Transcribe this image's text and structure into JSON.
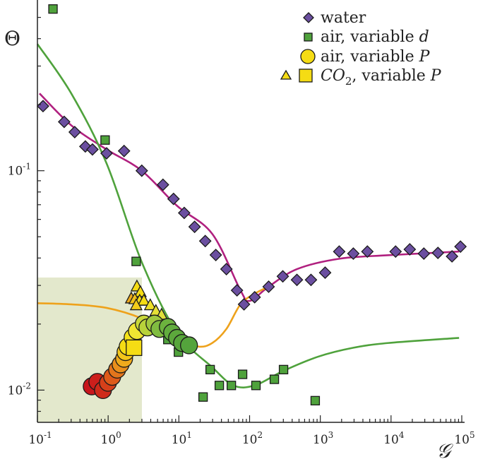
{
  "chart_data": {
    "type": "scatter",
    "title": "",
    "xlabel": "𝒢",
    "ylabel": "Θ",
    "xscale": "log",
    "yscale": "log",
    "xlim": [
      0.1,
      100000
    ],
    "ylim": [
      0.00713,
      0.6
    ],
    "grid": false,
    "legend_position": "top-right",
    "x_ticks": [
      {
        "base": "10",
        "exp": "-1",
        "value": 0.1
      },
      {
        "base": "10",
        "exp": "0",
        "value": 1
      },
      {
        "base": "10",
        "exp": "1",
        "value": 10
      },
      {
        "base": "10",
        "exp": "2",
        "value": 100
      },
      {
        "base": "10",
        "exp": "3",
        "value": 1000
      },
      {
        "base": "10",
        "exp": "4",
        "value": 10000
      },
      {
        "base": "10",
        "exp": "5",
        "value": 100000
      }
    ],
    "y_ticks": [
      {
        "base": "10",
        "exp": "-1",
        "value": 0.1
      },
      {
        "base": "10",
        "exp": "-2",
        "value": 0.01
      }
    ],
    "shaded_region": {
      "x": [
        0.1,
        3.0
      ],
      "y": [
        0.00713,
        0.0326
      ],
      "color": "#e3e8cc"
    },
    "legend": [
      {
        "marker": "diamond",
        "color": "#6b4fa0",
        "text": "water"
      },
      {
        "marker": "square",
        "color": "#4fa23c",
        "text": "air,  variable ",
        "italic": "d"
      },
      {
        "marker": "circle",
        "color": "#f5dc14",
        "text": "air,  variable ",
        "italic": "P"
      },
      {
        "marker": "triangle+square",
        "color": "#f5dc14",
        "text_italic_pre": "CO",
        "sub": "2",
        "text": ", variable ",
        "italic": "P"
      }
    ],
    "fits": [
      {
        "name": "water-fit",
        "color": "#b0207f",
        "x": [
          0.107,
          0.301,
          0.95,
          2.99,
          9.42,
          29.7,
          74.3,
          100,
          186,
          467,
          1850,
          9230,
          91600
        ],
        "y": [
          0.225,
          0.161,
          0.125,
          0.1,
          0.0692,
          0.0515,
          0.0285,
          0.0255,
          0.0296,
          0.0356,
          0.0397,
          0.0412,
          0.0428
        ]
      },
      {
        "name": "air-d-fit",
        "color": "#4fa23c",
        "x": [
          0.1,
          0.301,
          0.95,
          2.99,
          9.42,
          29.7,
          59.2,
          118,
          295,
          929,
          2930,
          9230,
          91600
        ],
        "y": [
          0.378,
          0.225,
          0.108,
          0.0383,
          0.0183,
          0.0127,
          0.0105,
          0.0105,
          0.0122,
          0.0142,
          0.0156,
          0.0164,
          0.0173
        ]
      },
      {
        "name": "air-P-fit",
        "color": "#eea21c",
        "x": [
          0.1,
          0.301,
          0.95,
          2.99,
          9.42,
          18.7,
          29.7,
          47,
          74.3,
          118,
          186
        ],
        "y": [
          0.0249,
          0.0246,
          0.0237,
          0.0212,
          0.0173,
          0.0158,
          0.0164,
          0.019,
          0.0246,
          0.0275,
          0.0296
        ]
      }
    ],
    "series": [
      {
        "name": "water",
        "marker": "diamond",
        "color": "#6b4fa0",
        "x": [
          0.12,
          0.239,
          0.337,
          0.476,
          0.6,
          0.95,
          1.68,
          2.99,
          5.96,
          8.4,
          11.9,
          16.7,
          23.6,
          33.3,
          47,
          66.4,
          83.4,
          118,
          186,
          295,
          467,
          738,
          1170,
          1850,
          2930,
          4630,
          11600,
          18400,
          29100,
          46000,
          72800,
          95900
        ],
        "y": [
          0.197,
          0.167,
          0.15,
          0.129,
          0.125,
          0.12,
          0.123,
          0.1,
          0.0863,
          0.0744,
          0.0642,
          0.0555,
          0.0478,
          0.0413,
          0.0356,
          0.0285,
          0.0246,
          0.0265,
          0.0296,
          0.033,
          0.0318,
          0.0318,
          0.0343,
          0.0428,
          0.0419,
          0.0428,
          0.0428,
          0.0438,
          0.0419,
          0.0422,
          0.0407,
          0.0451
        ]
      },
      {
        "name": "air, variable d",
        "marker": "square",
        "color": "#4fa23c",
        "x": [
          0.166,
          0.906,
          2.49,
          6.98,
          9.86,
          22,
          27.7,
          37.3,
          55.2,
          79.6,
          123,
          224,
          302,
          847
        ],
        "y": [
          0.546,
          0.138,
          0.0386,
          0.017,
          0.0149,
          0.0093,
          0.0124,
          0.0105,
          0.0105,
          0.0118,
          0.0105,
          0.0112,
          0.0124,
          0.00895
        ]
      },
      {
        "name": "air, variable P",
        "marker": "circle",
        "x": [
          0.586,
          0.704,
          0.845,
          0.993,
          1.14,
          1.34,
          1.5,
          1.68,
          1.76,
          1.89,
          2.22,
          2.55,
          3.2,
          3.59,
          4.52,
          5.31,
          6.98,
          8.02,
          9.42,
          11.1,
          13.9
        ],
        "y": [
          0.0104,
          0.0109,
          0.01,
          0.0108,
          0.0115,
          0.0124,
          0.0131,
          0.0139,
          0.0149,
          0.0158,
          0.0174,
          0.0186,
          0.0201,
          0.0193,
          0.0201,
          0.019,
          0.0194,
          0.0183,
          0.0173,
          0.0164,
          0.016
        ],
        "colors": [
          "#c8161c",
          "#cc1f1c",
          "#cf2a1a",
          "#d6401a",
          "#de5a1a",
          "#e3751c",
          "#ea8f1c",
          "#f0aa1c",
          "#f3c61a",
          "#f5dc14",
          "#f4e21a",
          "#f0e632",
          "#c8d83a",
          "#b8d23a",
          "#a0c840",
          "#80bc40",
          "#6cb23e",
          "#62ad3e",
          "#5ca83c",
          "#58a63c",
          "#54a43c"
        ]
      },
      {
        "name": "CO2, variable P (square)",
        "marker": "square-large",
        "color": "#f5dc14",
        "x": [
          2.32
        ],
        "y": [
          0.0156
        ]
      },
      {
        "name": "CO2, variable P (triangle)",
        "marker": "triangle",
        "x": [
          2.55,
          2.86,
          2.12,
          2.38,
          2.79,
          3.2,
          2.49,
          3.94,
          4.73,
          5.69
        ],
        "y": [
          0.0296,
          0.0279,
          0.0261,
          0.0259,
          0.0255,
          0.0255,
          0.0243,
          0.0243,
          0.0229,
          0.022
        ],
        "colors": [
          "#f5dc14",
          "#f5dc14",
          "#eba81c",
          "#f0c01a",
          "#f5dc14",
          "#f5dc14",
          "#f3cc18",
          "#eee02a",
          "#e6e036",
          "#dfe03c"
        ]
      }
    ]
  }
}
